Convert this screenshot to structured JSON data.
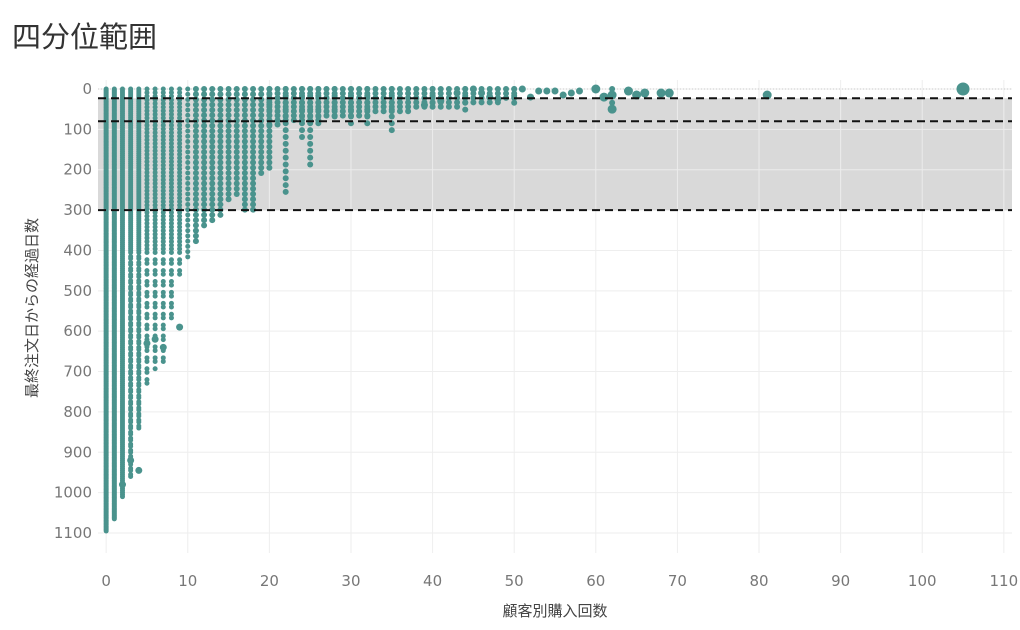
{
  "chart_data": {
    "type": "scatter",
    "title": "四分位範囲",
    "xlabel": "顧客別購入回数",
    "ylabel": "最終注文日からの経過日数",
    "xlim": [
      -1,
      111
    ],
    "ylim": [
      0,
      1120
    ],
    "y_reversed": true,
    "x_ticks": [
      0,
      10,
      20,
      30,
      40,
      50,
      60,
      70,
      80,
      90,
      100,
      110
    ],
    "y_ticks": [
      0,
      100,
      200,
      300,
      400,
      500,
      600,
      700,
      800,
      900,
      1000,
      1100
    ],
    "grid": true,
    "iqr_band": [
      23,
      300
    ],
    "reference_lines": [
      23,
      80,
      300
    ],
    "color": "#4a938d",
    "band_color": "#d9d9d9",
    "points_note_columns": [
      {
        "x": 0,
        "ymax": 1095
      },
      {
        "x": 1,
        "ymax": 1065
      },
      {
        "x": 2,
        "ymax": 1010
      },
      {
        "x": 3,
        "ymax": 960
      },
      {
        "x": 4,
        "ymax": 840
      },
      {
        "x": 5,
        "ymax": 730
      },
      {
        "x": 6,
        "ymax": 700
      },
      {
        "x": 7,
        "ymax": 680
      },
      {
        "x": 8,
        "ymax": 570
      },
      {
        "x": 9,
        "ymax": 460
      },
      {
        "x": 10,
        "ymax": 420
      },
      {
        "x": 11,
        "ymax": 380
      },
      {
        "x": 12,
        "ymax": 345
      },
      {
        "x": 13,
        "ymax": 330
      },
      {
        "x": 14,
        "ymax": 320
      },
      {
        "x": 15,
        "ymax": 280
      },
      {
        "x": 16,
        "ymax": 270
      },
      {
        "x": 17,
        "ymax": 300
      },
      {
        "x": 18,
        "ymax": 305
      },
      {
        "x": 19,
        "ymax": 210
      },
      {
        "x": 20,
        "ymax": 200
      },
      {
        "x": 22,
        "ymax": 265
      },
      {
        "x": 24,
        "ymax": 120
      },
      {
        "x": 25,
        "ymax": 195
      },
      {
        "x": 26,
        "ymax": 90
      },
      {
        "x": 28,
        "ymax": 70
      },
      {
        "x": 30,
        "ymax": 90
      },
      {
        "x": 32,
        "ymax": 90
      },
      {
        "x": 35,
        "ymax": 105
      },
      {
        "x": 40,
        "ymax": 50
      },
      {
        "x": 44,
        "ymax": 55
      },
      {
        "x": 50,
        "ymax": 50
      },
      {
        "x": 62,
        "ymax": 50
      }
    ],
    "sparse_points": [
      {
        "x": 9,
        "y": 590
      },
      {
        "x": 5,
        "y": 630
      },
      {
        "x": 6,
        "y": 620
      },
      {
        "x": 7,
        "y": 640
      },
      {
        "x": 4,
        "y": 945
      },
      {
        "x": 3,
        "y": 920
      },
      {
        "x": 2,
        "y": 980
      },
      {
        "x": 81,
        "y": 15
      },
      {
        "x": 105,
        "y": 0
      },
      {
        "x": 69,
        "y": 10
      },
      {
        "x": 68,
        "y": 10
      },
      {
        "x": 66,
        "y": 10
      },
      {
        "x": 65,
        "y": 15
      },
      {
        "x": 64,
        "y": 5
      },
      {
        "x": 62,
        "y": 15
      },
      {
        "x": 62,
        "y": 50
      },
      {
        "x": 61,
        "y": 20
      },
      {
        "x": 60,
        "y": 0
      },
      {
        "x": 58,
        "y": 5
      },
      {
        "x": 57,
        "y": 10
      },
      {
        "x": 56,
        "y": 15
      },
      {
        "x": 55,
        "y": 5
      },
      {
        "x": 54,
        "y": 5
      },
      {
        "x": 53,
        "y": 5
      },
      {
        "x": 52,
        "y": 20
      },
      {
        "x": 51,
        "y": 0
      },
      {
        "x": 48,
        "y": 25
      },
      {
        "x": 47,
        "y": 20
      },
      {
        "x": 46,
        "y": 10
      },
      {
        "x": 45,
        "y": 0
      },
      {
        "x": 43,
        "y": 10
      },
      {
        "x": 41,
        "y": 30
      },
      {
        "x": 39,
        "y": 40
      }
    ]
  }
}
